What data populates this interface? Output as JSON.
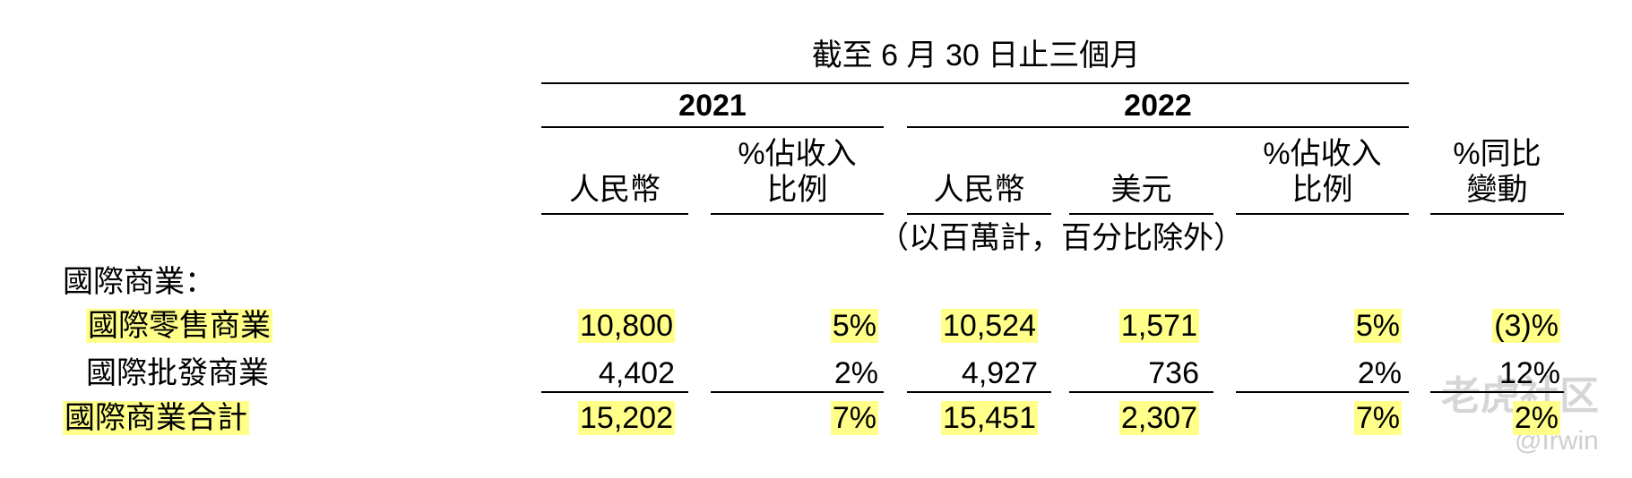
{
  "header": {
    "title": "截至 6 月 30 日止三個月",
    "years": [
      "2021",
      "2022"
    ],
    "columns": [
      "人民幣",
      "%佔收入\n比例",
      "人民幣",
      "美元",
      "%佔收入\n比例",
      "%同比\n變動"
    ],
    "note": "（以百萬計，百分比除外）"
  },
  "table": {
    "section": "國際商業：",
    "rows": [
      {
        "label": "國際零售商業",
        "cells": [
          "10,800",
          "5%",
          "10,524",
          "1,571",
          "5%",
          "(3)%"
        ]
      },
      {
        "label": "國際批發商業",
        "cells": [
          "4,402",
          "2%",
          "4,927",
          "736",
          "2%",
          "12%"
        ]
      },
      {
        "label": "國際商業合計",
        "cells": [
          "15,202",
          "7%",
          "15,451",
          "2,307",
          "7%",
          "2%"
        ]
      }
    ]
  },
  "watermark": {
    "brand": "老虎社区",
    "user": "@Irwin"
  }
}
